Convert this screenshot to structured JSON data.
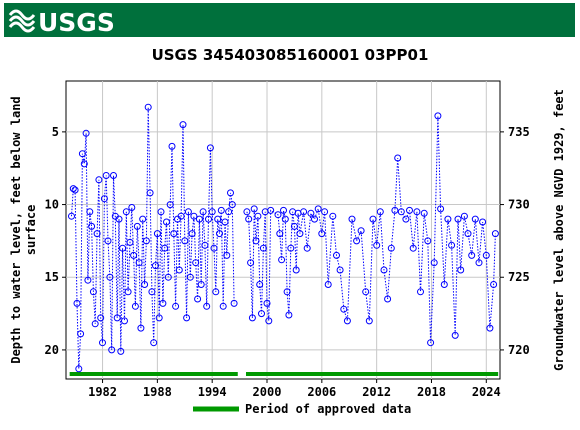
{
  "banner": {
    "logo_text": "USGS",
    "brand_color": "#00703c",
    "logo_icon": "usgs-wave-logo"
  },
  "chart_data": {
    "type": "scatter",
    "title": "USGS 345403085160001 03PP01",
    "ylabel_left": [
      "Depth to water level, feet below land",
      "surface"
    ],
    "ylabel_right": "Groundwater level above NGVD 1929, feet",
    "x_range": [
      1978.0,
      2025.5
    ],
    "y_range_left": [
      22.0,
      1.5
    ],
    "y_range_right": [
      718.0,
      738.5
    ],
    "x_ticks": [
      1982,
      1988,
      1994,
      2000,
      2006,
      2012,
      2018,
      2024
    ],
    "y_ticks_left": [
      5,
      10,
      15,
      20
    ],
    "y_ticks_right": [
      720,
      725,
      730,
      735
    ],
    "grid": true,
    "series": [
      {
        "marker": "open-circle",
        "line": "dotted",
        "color": "#0000ff",
        "segments": [
          [
            [
              1978.6,
              10.8
            ],
            [
              1978.8,
              8.9
            ],
            [
              1979.0,
              9.0
            ],
            [
              1979.2,
              16.8
            ],
            [
              1979.4,
              21.3
            ],
            [
              1979.6,
              18.9
            ],
            [
              1979.8,
              6.5
            ],
            [
              1980.0,
              7.2
            ],
            [
              1980.2,
              5.1
            ],
            [
              1980.4,
              15.2
            ],
            [
              1980.6,
              10.5
            ],
            [
              1980.8,
              11.5
            ],
            [
              1981.0,
              16.0
            ],
            [
              1981.2,
              18.2
            ],
            [
              1981.4,
              12.0
            ],
            [
              1981.6,
              8.3
            ],
            [
              1981.8,
              17.8
            ],
            [
              1982.0,
              19.5
            ],
            [
              1982.2,
              9.6
            ],
            [
              1982.4,
              8.0
            ],
            [
              1982.6,
              12.5
            ],
            [
              1982.8,
              15.0
            ],
            [
              1983.0,
              20.0
            ],
            [
              1983.2,
              8.0
            ],
            [
              1983.4,
              10.8
            ],
            [
              1983.6,
              17.8
            ],
            [
              1983.8,
              11.0
            ],
            [
              1984.0,
              20.1
            ],
            [
              1984.2,
              13.0
            ],
            [
              1984.4,
              18.0
            ],
            [
              1984.6,
              10.5
            ],
            [
              1984.8,
              16.0
            ],
            [
              1985.0,
              12.6
            ],
            [
              1985.2,
              10.2
            ],
            [
              1985.4,
              13.5
            ],
            [
              1985.6,
              17.0
            ],
            [
              1985.8,
              11.5
            ],
            [
              1986.0,
              14.0
            ],
            [
              1986.2,
              18.5
            ],
            [
              1986.4,
              11.0
            ],
            [
              1986.6,
              15.5
            ],
            [
              1986.8,
              12.5
            ],
            [
              1987.0,
              3.3
            ],
            [
              1987.2,
              9.2
            ],
            [
              1987.4,
              16.0
            ],
            [
              1987.6,
              19.5
            ],
            [
              1987.8,
              14.2
            ],
            [
              1988.0,
              12.0
            ],
            [
              1988.2,
              17.8
            ],
            [
              1988.4,
              10.5
            ],
            [
              1988.6,
              16.8
            ],
            [
              1988.8,
              13.0
            ],
            [
              1989.0,
              11.2
            ],
            [
              1989.2,
              15.0
            ],
            [
              1989.4,
              10.0
            ],
            [
              1989.6,
              6.0
            ],
            [
              1989.8,
              12.0
            ],
            [
              1990.0,
              17.0
            ],
            [
              1990.2,
              11.0
            ],
            [
              1990.4,
              14.5
            ],
            [
              1990.6,
              10.8
            ],
            [
              1990.8,
              4.5
            ],
            [
              1991.0,
              12.5
            ],
            [
              1991.2,
              17.8
            ],
            [
              1991.4,
              10.5
            ],
            [
              1991.6,
              15.0
            ],
            [
              1991.8,
              12.0
            ],
            [
              1992.0,
              10.8
            ],
            [
              1992.2,
              14.0
            ],
            [
              1992.4,
              16.5
            ],
            [
              1992.6,
              11.0
            ],
            [
              1992.8,
              15.5
            ],
            [
              1993.0,
              10.5
            ],
            [
              1993.2,
              12.8
            ],
            [
              1993.4,
              17.0
            ],
            [
              1993.6,
              11.0
            ],
            [
              1993.8,
              6.1
            ],
            [
              1994.0,
              10.5
            ],
            [
              1994.2,
              13.0
            ],
            [
              1994.4,
              16.0
            ],
            [
              1994.6,
              11.0
            ],
            [
              1994.8,
              12.0
            ],
            [
              1995.0,
              10.4
            ],
            [
              1995.2,
              17.0
            ],
            [
              1995.4,
              11.2
            ],
            [
              1995.6,
              13.5
            ],
            [
              1995.8,
              10.5
            ],
            [
              1996.0,
              9.2
            ],
            [
              1996.2,
              10.0
            ],
            [
              1996.4,
              16.8
            ]
          ],
          [
            [
              1997.8,
              10.5
            ],
            [
              1998.0,
              11.0
            ],
            [
              1998.2,
              14.0
            ],
            [
              1998.4,
              17.8
            ],
            [
              1998.6,
              10.3
            ],
            [
              1998.8,
              12.5
            ],
            [
              1999.0,
              10.8
            ],
            [
              1999.2,
              15.5
            ],
            [
              1999.4,
              17.5
            ],
            [
              1999.6,
              13.0
            ],
            [
              1999.8,
              10.5
            ],
            [
              2000.0,
              16.8
            ],
            [
              2000.2,
              18.0
            ],
            [
              2000.4,
              10.4
            ],
            [
              2001.2,
              10.7
            ],
            [
              2001.4,
              12.0
            ],
            [
              2001.6,
              13.8
            ],
            [
              2001.8,
              10.4
            ],
            [
              2002.0,
              11.0
            ],
            [
              2002.2,
              16.0
            ],
            [
              2002.4,
              17.6
            ],
            [
              2002.6,
              13.0
            ],
            [
              2002.8,
              10.5
            ],
            [
              2003.0,
              11.5
            ],
            [
              2003.2,
              14.5
            ],
            [
              2003.4,
              10.6
            ],
            [
              2003.6,
              12.0
            ],
            [
              2004.0,
              10.5
            ],
            [
              2004.4,
              13.0
            ],
            [
              2004.8,
              10.6
            ],
            [
              2005.2,
              11.0
            ],
            [
              2005.6,
              10.3
            ],
            [
              2006.0,
              12.0
            ],
            [
              2006.3,
              10.5
            ],
            [
              2006.7,
              15.5
            ],
            [
              2007.2,
              10.8
            ],
            [
              2007.6,
              13.5
            ],
            [
              2008.0,
              14.5
            ],
            [
              2008.4,
              17.2
            ],
            [
              2008.8,
              18.0
            ],
            [
              2009.3,
              11.0
            ],
            [
              2009.8,
              12.5
            ],
            [
              2010.3,
              11.8
            ],
            [
              2010.8,
              16.0
            ],
            [
              2011.2,
              18.0
            ],
            [
              2011.6,
              11.0
            ],
            [
              2012.0,
              12.8
            ],
            [
              2012.4,
              10.5
            ],
            [
              2012.8,
              14.5
            ],
            [
              2013.2,
              16.5
            ],
            [
              2013.6,
              13.0
            ],
            [
              2014.0,
              10.4
            ],
            [
              2014.3,
              6.8
            ],
            [
              2014.7,
              10.5
            ],
            [
              2015.2,
              11.0
            ],
            [
              2015.6,
              10.4
            ],
            [
              2016.0,
              13.0
            ],
            [
              2016.4,
              10.5
            ],
            [
              2016.8,
              16.0
            ],
            [
              2017.2,
              10.6
            ],
            [
              2017.6,
              12.5
            ],
            [
              2017.9,
              19.5
            ],
            [
              2018.3,
              14.0
            ],
            [
              2018.7,
              3.9
            ],
            [
              2019.0,
              10.3
            ],
            [
              2019.4,
              15.5
            ],
            [
              2019.8,
              11.0
            ],
            [
              2020.2,
              12.8
            ],
            [
              2020.6,
              19.0
            ],
            [
              2020.9,
              11.0
            ],
            [
              2021.2,
              14.5
            ],
            [
              2021.6,
              10.8
            ],
            [
              2022.0,
              12.0
            ],
            [
              2022.4,
              13.5
            ],
            [
              2022.8,
              11.0
            ],
            [
              2023.2,
              14.0
            ],
            [
              2023.6,
              11.2
            ],
            [
              2024.0,
              13.5
            ],
            [
              2024.4,
              18.5
            ],
            [
              2024.8,
              15.5
            ],
            [
              2025.0,
              12.0
            ]
          ]
        ]
      }
    ],
    "approved_period": {
      "color": "#009900",
      "ranges": [
        [
          1978.4,
          1996.8
        ],
        [
          1997.7,
          2025.3
        ]
      ],
      "label": "Period of approved data"
    },
    "legend_placement": "bottom-center"
  }
}
